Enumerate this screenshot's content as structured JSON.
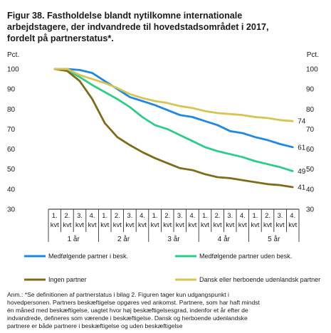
{
  "title_lines": [
    "Figur 38. Fastholdelse blandt nytilkomne internationale",
    "arbejdstagere, der indvandrede til hovedstadsområdet i 2017,",
    "fordelt på partnerstatus*."
  ],
  "note_lines": [
    "Anm.: *Se definitionen af partnerstatus i bilag 2. Figuren tager kun udgangspunkt i",
    "hovedpersonen. Partners beskæftigelse opgøres ved ankomst. Partnere, som har haft mindst",
    "én måned med beskæftigelse, uagtet hvor høj beskæftigelsesgrad, indenfor et år efter de",
    "indvandrede, defineres som værende i beskæftigelse. Dansk og herboende udenlandske",
    "partnere er både partnere i beskæftigelse og uden beskæftigelse"
  ],
  "chart_data": {
    "type": "line",
    "ylabel_left": "Pct.",
    "ylabel_right": "Pct.",
    "ylim": [
      30,
      100
    ],
    "yticks": [
      100,
      90,
      80,
      70,
      60,
      50,
      40,
      30
    ],
    "grid": false,
    "x_quarter_labels": [
      [
        "1.",
        "kvt"
      ],
      [
        "2.",
        "kvt"
      ],
      [
        "3.",
        "kvt"
      ],
      [
        "4.",
        "kvt"
      ],
      [
        "1.",
        "kvt"
      ],
      [
        "2.",
        "kvt"
      ],
      [
        "3.",
        "kvt"
      ],
      [
        "4.",
        "kvt"
      ],
      [
        "1.",
        "kvt"
      ],
      [
        "2.",
        "kvt"
      ],
      [
        "3.",
        "kvt"
      ],
      [
        "4.",
        "kvt"
      ],
      [
        "1.",
        "kvt"
      ],
      [
        "2.",
        "kvt"
      ],
      [
        "3.",
        "kvt"
      ],
      [
        "4.",
        "kvt"
      ],
      [
        "1.",
        "kvt"
      ],
      [
        "2.",
        "kvt"
      ],
      [
        "3.",
        "kvt"
      ],
      [
        "4.",
        "kvt"
      ]
    ],
    "x_year_labels": [
      "1 år",
      "2 år",
      "3 år",
      "4 år",
      "5 år"
    ],
    "legend_position": "bottom",
    "series": [
      {
        "name": "Medfølgende partner i besk.",
        "color": "#1e88e5",
        "end_label": "61",
        "values": [
          100,
          100,
          99.5,
          98,
          94,
          90,
          86,
          84,
          82,
          79.5,
          77,
          76,
          74,
          72,
          69,
          68,
          66,
          64.5,
          62.5,
          61
        ]
      },
      {
        "name": "Medfølgende partner uden besk.",
        "color": "#2ecc8a",
        "end_label": "49",
        "values": [
          100,
          99.5,
          96,
          92,
          88.5,
          85,
          81,
          76,
          72,
          70,
          67,
          64,
          61,
          59,
          57.5,
          56,
          54,
          52.5,
          51,
          49
        ]
      },
      {
        "name": "Ingen partner",
        "color": "#806b1c",
        "end_label": "41",
        "values": [
          100,
          99,
          94,
          85,
          73,
          66,
          62,
          58.5,
          55.5,
          53,
          50.5,
          49.5,
          47.5,
          46,
          45.5,
          44.5,
          43.5,
          42.5,
          42,
          41
        ]
      },
      {
        "name": "Dansk eller herboende udenlandsk partner",
        "color": "#d8c453",
        "end_label": "74",
        "values": [
          100,
          100,
          97,
          95,
          93,
          90.5,
          87.5,
          85.5,
          84,
          83,
          81.5,
          80.5,
          79,
          78,
          77.5,
          77,
          76,
          75.5,
          74.5,
          74
        ]
      }
    ]
  }
}
